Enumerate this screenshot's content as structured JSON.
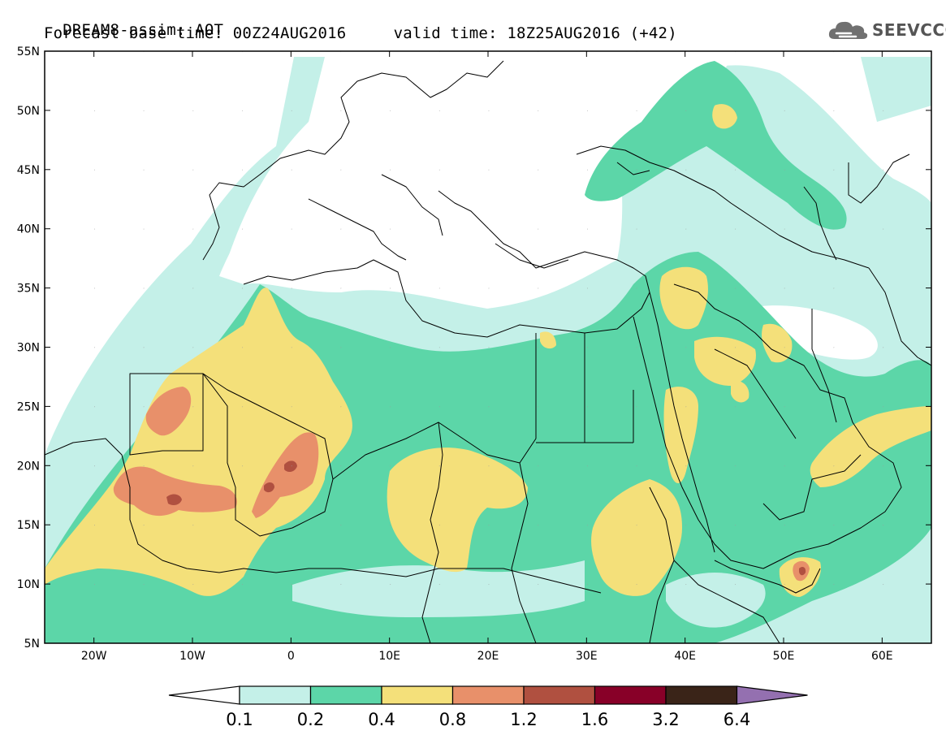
{
  "header": {
    "line1": "DREAM8-assim: AOT",
    "base_time_label": "Forecast base time:",
    "base_time": "00Z24AUG2016",
    "valid_time_label": "valid time:",
    "valid_time": "18Z25AUG2016",
    "lead": "(+42)"
  },
  "logo": {
    "text": "SEEVCCC",
    "icon": "cloud-icon"
  },
  "map": {
    "lon_range": [
      -25,
      65
    ],
    "lat_range": [
      5,
      55
    ],
    "lon_ticks": [
      "20W",
      "10W",
      "0",
      "10E",
      "20E",
      "30E",
      "40E",
      "50E",
      "60E"
    ],
    "lat_ticks": [
      "5N",
      "10N",
      "15N",
      "20N",
      "25N",
      "30N",
      "35N",
      "40N",
      "45N",
      "50N",
      "55N"
    ]
  },
  "colorbar": {
    "levels": [
      "0.1",
      "0.2",
      "0.4",
      "0.8",
      "1.2",
      "1.6",
      "3.2",
      "6.4"
    ],
    "colors": [
      "#c4f0e8",
      "#5cd6a8",
      "#f4e07a",
      "#e8906a",
      "#b05040",
      "#880028",
      "#3a2418",
      "#9470b0"
    ],
    "under_color": "#ffffff"
  }
}
